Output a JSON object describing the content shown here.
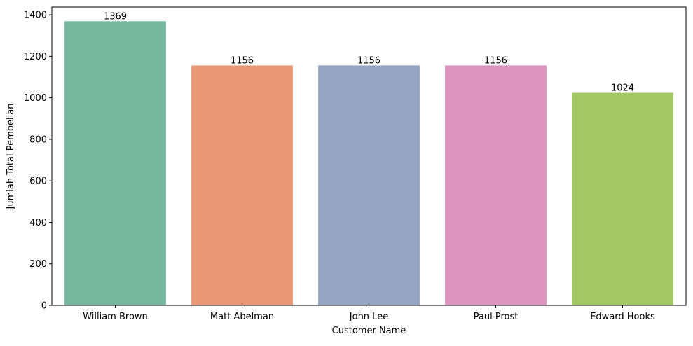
{
  "chart_data": {
    "type": "bar",
    "title": "",
    "xlabel": "Customer Name",
    "ylabel": "Jumlah Total Pembelian",
    "categories": [
      "William Brown",
      "Matt Abelman",
      "John Lee",
      "Paul Prost",
      "Edward Hooks"
    ],
    "values": [
      1369,
      1156,
      1156,
      1156,
      1024
    ],
    "data_labels": [
      "1369",
      "1156",
      "1156",
      "1156",
      "1024"
    ],
    "colors": [
      "#76b7a0",
      "#e99774",
      "#94a5c4",
      "#dd94bf",
      "#a3c866"
    ],
    "ylim": [
      0,
      1437.45
    ],
    "yticks": [
      0,
      200,
      400,
      600,
      800,
      1000,
      1200,
      1400
    ],
    "ytick_labels": [
      "0",
      "200",
      "400",
      "600",
      "800",
      "1000",
      "1200",
      "1400"
    ],
    "grid": false,
    "legend": "none"
  }
}
